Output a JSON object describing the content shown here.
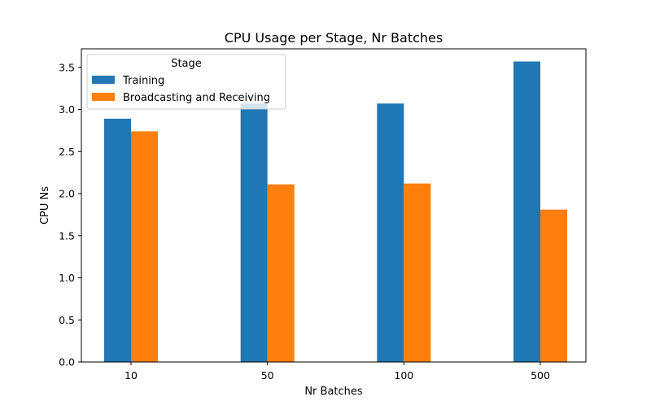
{
  "chart_data": {
    "type": "bar",
    "title": "CPU Usage per Stage, Nr Batches",
    "xlabel": "Nr Batches",
    "ylabel": "CPU Ns",
    "categories": [
      "10",
      "50",
      "100",
      "500"
    ],
    "series": [
      {
        "name": "Training",
        "color": "#1f77b4",
        "values": [
          2.89,
          3.07,
          3.07,
          3.57
        ]
      },
      {
        "name": "Broadcasting and Receiving",
        "color": "#ff7f0e",
        "values": [
          2.74,
          2.11,
          2.12,
          1.81
        ]
      }
    ],
    "ylim": [
      0,
      3.72
    ],
    "yticks": [
      "0.0",
      "0.5",
      "1.0",
      "1.5",
      "2.0",
      "2.5",
      "3.0",
      "3.5"
    ],
    "legend": {
      "title": "Stage",
      "placement": "top-left"
    },
    "grid": false
  }
}
